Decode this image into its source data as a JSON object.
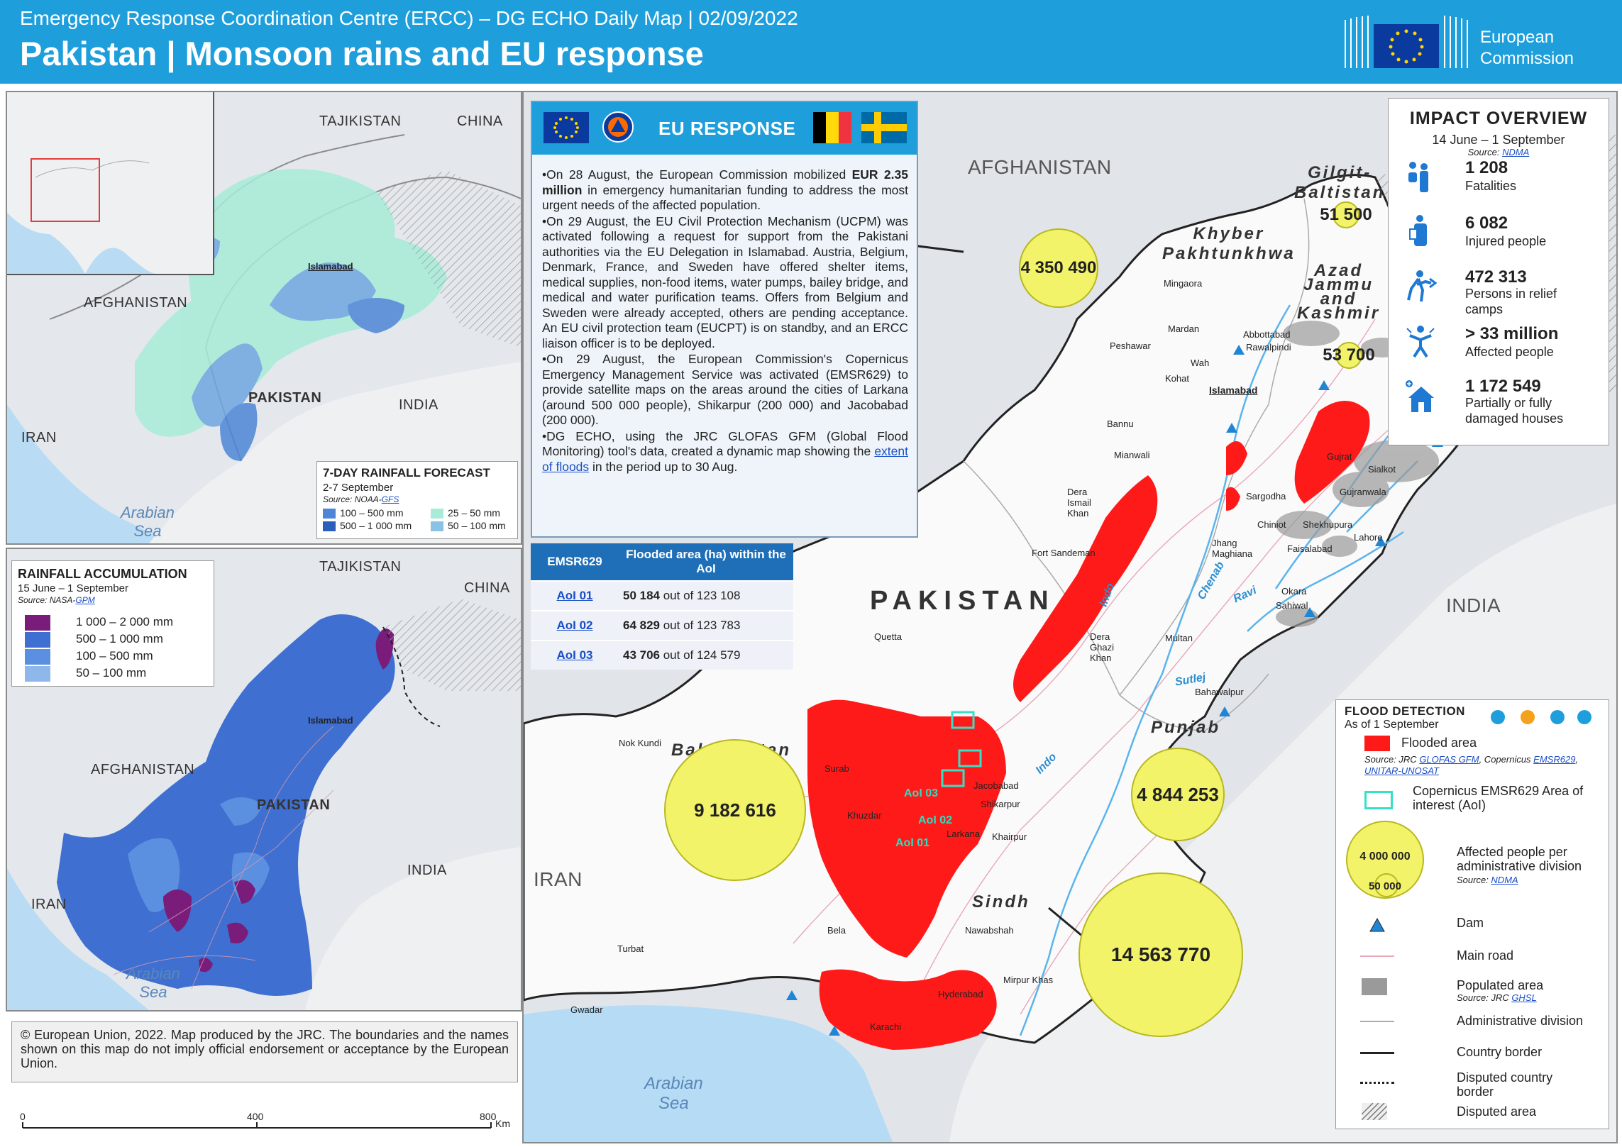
{
  "header": {
    "subtitle": "Emergency Response Coordination Centre (ERCC) – DG ECHO Daily Map | 02/09/2022",
    "title": "Pakistan | Monsoon rains and EU response",
    "logo_line1": "European",
    "logo_line2": "Commission"
  },
  "colors": {
    "header_blue": "#1e9fdc",
    "flooded_red": "#ff1a1a",
    "rain_dark": "#7a1d7a",
    "rain_blue": "#3d6fd1",
    "affected_yellow": "#f3f36a"
  },
  "forecast_map": {
    "labels": {
      "tajikistan": "TAJIKISTAN",
      "china": "CHINA",
      "afghanistan": "AFGHANISTAN",
      "pakistan": "PAKISTAN",
      "india": "INDIA",
      "iran": "IRAN",
      "islamabad": "Islamabad",
      "sea_line1": "Arabian",
      "sea_line2": "Sea"
    },
    "legend": {
      "title": "7-DAY RAINFALL FORECAST",
      "period": "2-7 September",
      "source_prefix": "Source: NOAA-",
      "source_link": "GFS",
      "items": [
        "100 – 500 mm",
        "500 – 1 000 mm",
        "25 – 50 mm",
        "50 – 100 mm"
      ]
    }
  },
  "accumulation_map": {
    "labels": {
      "tajikistan": "TAJIKISTAN",
      "china": "CHINA",
      "afghanistan": "AFGHANISTAN",
      "pakistan": "PAKISTAN",
      "india": "INDIA",
      "iran": "IRAN",
      "islamabad": "Islamabad",
      "sea_line1": "Arabian",
      "sea_line2": "Sea"
    },
    "legend": {
      "title": "RAINFALL ACCUMULATION",
      "period": "15 June – 1 September",
      "source_prefix": "Source: NASA-",
      "source_link": "GPM",
      "items": [
        "1 000 – 2 000 mm",
        "500 – 1 000 mm",
        "100 – 500 mm",
        "50 – 100 mm"
      ]
    }
  },
  "eu_response": {
    "title": "EU RESPONSE",
    "p1_before": "•On 28 August, the European Commission mobilized ",
    "p1_bold": "EUR 2.35 million",
    "p1_after": " in emergency humanitarian funding to address the most urgent needs of the affected population.",
    "p2": "•On 29 August, the EU Civil Protection Mechanism (UCPM) was activated following a request for support from the Pakistani authorities via the EU Delegation in Islamabad. Austria, Belgium, Denmark, France, and Sweden have offered shelter items, medical supplies, non-food items, water pumps, bailey bridge, and medical and water purification teams. Offers from Belgium and Sweden were already accepted, others are pending acceptance. An EU civil protection team (EUCPT) is on standby, and an ERCC liaison officer is to be deployed.",
    "p3": "•On 29 August, the European Commission's Copernicus Emergency Management Service was activated (EMSR629) to provide satellite maps on the areas around the cities of Larkana (around 500 000 people), Shikarpur (200 000) and Jacobabad (200 000).",
    "p4_before": "•DG ECHO, using the JRC GLOFAS GFM (Global Flood Monitoring) tool's data, created a dynamic map showing the ",
    "p4_link": "extent of floods",
    "p4_after": " in the period up to 30 Aug."
  },
  "aoi_table": {
    "col1": "EMSR629",
    "col2": "Flooded area (ha) within the AoI",
    "rows": [
      {
        "aoi": "AoI 01",
        "value": "50 184",
        "suffix": " out of 123 108"
      },
      {
        "aoi": "AoI 02",
        "value": "64 829",
        "suffix": " out of 123 783"
      },
      {
        "aoi": "AoI 03",
        "value": "43 706",
        "suffix": " out of 124 579"
      }
    ]
  },
  "impact": {
    "title": "IMPACT OVERVIEW",
    "period": "14 June – 1 September",
    "source_prefix": "Source: ",
    "source_link": "NDMA",
    "items": [
      {
        "value": "1 208",
        "label": "Fatalities",
        "icon": "fatalities-icon"
      },
      {
        "value": "6 082",
        "label": "Injured people",
        "icon": "injured-icon"
      },
      {
        "value": "472 313",
        "label": "Persons in relief camps",
        "icon": "relief-camp-icon"
      },
      {
        "value": "> 33 million",
        "label": "Affected people",
        "icon": "affected-people-icon"
      },
      {
        "value": "1 172 549",
        "label": "Partially or fully damaged houses",
        "icon": "damaged-house-icon"
      }
    ]
  },
  "main_map": {
    "country_labels": {
      "afghanistan": "AFGHANISTAN",
      "pakistan": "PAKISTAN",
      "india": "INDIA",
      "iran": "IRAN",
      "sea_line1": "Arabian",
      "sea_line2": "Sea"
    },
    "provinces": {
      "gilgit1": "Gilgit-",
      "gilgit2": "Baltistan",
      "khyber1": "Khyber",
      "khyber2": "Pakhtunkhwa",
      "ajk1": "Azad",
      "ajk2": "Jammu",
      "ajk3": "and",
      "ajk4": "Kashmir",
      "balochistan": "Balochistan",
      "punjab": "Punjab",
      "sindh": "Sindh"
    },
    "rivers": {
      "indo_north": "Indo",
      "chenab": "Chenab",
      "ravi": "Ravi",
      "sutlej": "Sutlej",
      "indo_south": "Indo"
    },
    "cities": {
      "mingaora": "Mingaora",
      "mardan": "Mardan",
      "peshawar": "Peshawar",
      "wah": "Wah",
      "abbottabad": "Abbottabad",
      "rawalpindi": "Rawalpindi",
      "islamabad": "Islamabad",
      "kohat": "Kohat",
      "bannu": "Bannu",
      "mianwali": "Mianwali",
      "gujrat": "Gujrat",
      "sialkot": "Sialkot",
      "gujranwala": "Gujranwala",
      "sargodha": "Sargodha",
      "dera_ismail": "Dera Ismail Khan",
      "chiniot": "Chiniot",
      "sheikhupura": "Shekhupura",
      "lahore": "Lahore",
      "jhang": "Jhang Maghiana",
      "faisalabad": "Faisalabad",
      "fort_sandeman": "Fort Sandeman",
      "okara": "Okara",
      "sahiwal": "Sahiwal",
      "quetta": "Quetta",
      "dera_ghazi": "Dera Ghazi Khan",
      "multan": "Multan",
      "bahawalpur": "Bahawalpur",
      "nok_kundi": "Nok Kundi",
      "surab": "Surab",
      "jacobabad": "Jacobabad",
      "shikarpur": "Shikarpur",
      "larkana": "Larkana",
      "khairpur": "Khairpur",
      "khuzdar": "Khuzdar",
      "bela": "Bela",
      "nawabshah": "Nawabshah",
      "turbat": "Turbat",
      "mirpur_khas": "Mirpur Khas",
      "hyderabad": "Hyderabad",
      "gwadar": "Gwadar",
      "karachi": "Karachi"
    },
    "aoi_labels": {
      "aoi01": "AoI 01",
      "aoi02": "AoI 02",
      "aoi03": "AoI 03"
    },
    "affected_circles": [
      {
        "name": "Khyber Pakhtunkhwa",
        "value": "4 350 490"
      },
      {
        "name": "Gilgit-Baltistan",
        "value": "51 500"
      },
      {
        "name": "Azad Jammu and Kashmir",
        "value": "53 700"
      },
      {
        "name": "Balochistan",
        "value": "9 182 616"
      },
      {
        "name": "Punjab",
        "value": "4 844 253"
      },
      {
        "name": "Sindh",
        "value": "14 563 770"
      }
    ],
    "scale": {
      "ticks": [
        "0",
        "400",
        "800"
      ],
      "unit": "Km"
    }
  },
  "flood_legend": {
    "title": "FLOOD DETECTION",
    "as_of": "As of 1 September",
    "flooded_area": "Flooded area",
    "flooded_source_prefix": "Source: JRC ",
    "flooded_source_link1": "GLOFAS GFM",
    "flooded_source_mid": ", Copernicus ",
    "flooded_source_link2": "EMSR629",
    "flooded_source_sep": ",",
    "flooded_source_link3": "UNITAR-UNOSAT",
    "aoi": "Copernicus EMSR629 Area of interest (AoI)",
    "affected": "Affected people per administrative division",
    "affected_source_prefix": "Source: ",
    "affected_source_link": "NDMA",
    "circle_big": "4 000 000",
    "circle_small": "50 000",
    "dam": "Dam",
    "main_road": "Main road",
    "populated": "Populated area",
    "populated_source_prefix": "Source: JRC ",
    "populated_source_link": "GHSL",
    "admin": "Administrative division",
    "border": "Country border",
    "disputed_border": "Disputed country border",
    "disputed_area": "Disputed area"
  },
  "disclaimer": "© European Union, 2022. Map produced by the JRC. The boundaries and the names shown on this map do not imply official endorsement or acceptance by the European Union."
}
